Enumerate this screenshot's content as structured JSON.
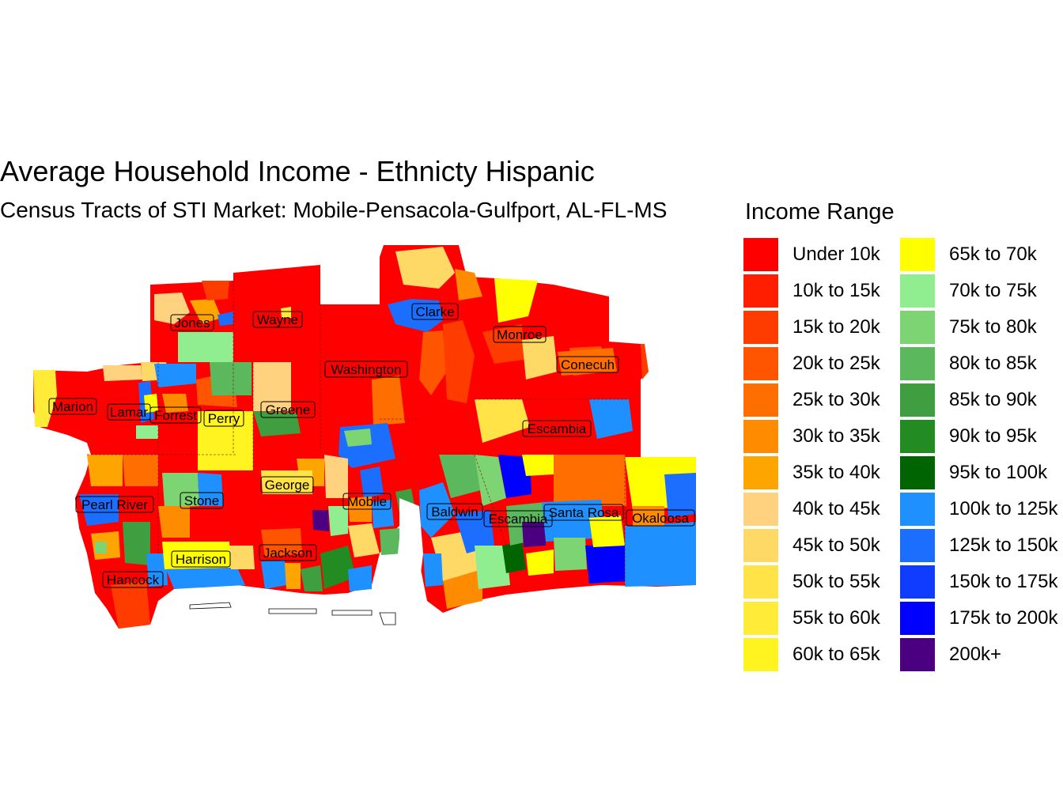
{
  "title": "Average Household Income - Ethnicty Hispanic",
  "subtitle": "Census Tracts of STI Market: Mobile-Pensacola-Gulfport, AL-FL-MS",
  "legend": {
    "title": "Income Range",
    "items": [
      {
        "label": "Under 10k",
        "color": "#FF0000"
      },
      {
        "label": "10k to 15k",
        "color": "#FF1E00"
      },
      {
        "label": "15k to 20k",
        "color": "#FF3C00"
      },
      {
        "label": "20k to 25k",
        "color": "#FF5500"
      },
      {
        "label": "25k to 30k",
        "color": "#FF6E00"
      },
      {
        "label": "30k to 35k",
        "color": "#FF8C00"
      },
      {
        "label": "35k to 40k",
        "color": "#FFA500"
      },
      {
        "label": "40k to 45k",
        "color": "#FFD27F"
      },
      {
        "label": "45k to 50k",
        "color": "#FFD966"
      },
      {
        "label": "50k to 55k",
        "color": "#FFE347"
      },
      {
        "label": "55k to 60k",
        "color": "#FFEB38"
      },
      {
        "label": "60k to 65k",
        "color": "#FFF41F"
      },
      {
        "label": "65k to 70k",
        "color": "#FFFF00"
      },
      {
        "label": "70k to 75k",
        "color": "#90EE90"
      },
      {
        "label": "75k to 80k",
        "color": "#7DD472"
      },
      {
        "label": "80k to 85k",
        "color": "#5CB85C"
      },
      {
        "label": "85k to 90k",
        "color": "#3F9E3F"
      },
      {
        "label": "90k to 95k",
        "color": "#228B22"
      },
      {
        "label": "95k to 100k",
        "color": "#006400"
      },
      {
        "label": "100k to 125k",
        "color": "#1E90FF"
      },
      {
        "label": "125k to 150k",
        "color": "#1C6EFF"
      },
      {
        "label": "150k to 175k",
        "color": "#0F3CFF"
      },
      {
        "label": "175k to 200k",
        "color": "#0000FF"
      },
      {
        "label": "200k+",
        "color": "#4B0082"
      }
    ]
  },
  "counties": [
    {
      "name": "Jones"
    },
    {
      "name": "Wayne"
    },
    {
      "name": "Clarke"
    },
    {
      "name": "Monroe"
    },
    {
      "name": "Washington"
    },
    {
      "name": "Conecuh"
    },
    {
      "name": "Marion"
    },
    {
      "name": "Lamar"
    },
    {
      "name": "Forrest"
    },
    {
      "name": "Perry"
    },
    {
      "name": "Greene"
    },
    {
      "name": "Escambia"
    },
    {
      "name": "George"
    },
    {
      "name": "Pearl River"
    },
    {
      "name": "Stone"
    },
    {
      "name": "Mobile"
    },
    {
      "name": "Baldwin"
    },
    {
      "name": "Escambia"
    },
    {
      "name": "Santa Rosa"
    },
    {
      "name": "Okaloosa"
    },
    {
      "name": "Harrison"
    },
    {
      "name": "Jackson"
    },
    {
      "name": "Hancock"
    }
  ]
}
